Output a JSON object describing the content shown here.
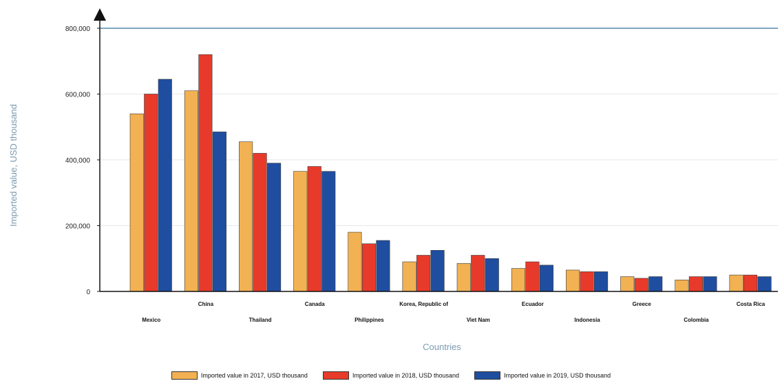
{
  "chart_data": {
    "type": "bar",
    "xlabel": "Countries",
    "ylabel": "Imported value, USD thousand",
    "ylim": [
      0,
      800000
    ],
    "yticks": [
      0,
      200000,
      400000,
      600000,
      800000
    ],
    "ytick_labels": [
      "0",
      "200,000",
      "400,000",
      "600,000",
      "800,000"
    ],
    "grid": "horizontal",
    "legend_position": "bottom",
    "categories": [
      "Mexico",
      "China",
      "Thailand",
      "Canada",
      "Philippines",
      "Korea, Republic of",
      "Viet Nam",
      "Ecuador",
      "Indonesia",
      "Greece",
      "Colombia",
      "Costa Rica"
    ],
    "series": [
      {
        "name": "Imported value in 2017, USD thousand",
        "color": "#f2b152",
        "values": [
          540000,
          610000,
          455000,
          365000,
          180000,
          90000,
          85000,
          70000,
          65000,
          45000,
          35000,
          50000
        ]
      },
      {
        "name": "Imported value in 2018, USD thousand",
        "color": "#e83a2a",
        "values": [
          600000,
          720000,
          420000,
          380000,
          145000,
          110000,
          110000,
          90000,
          60000,
          40000,
          45000,
          50000
        ]
      },
      {
        "name": "Imported value in 2019, USD thousand",
        "color": "#1f4ea0",
        "values": [
          645000,
          485000,
          390000,
          365000,
          155000,
          125000,
          100000,
          80000,
          60000,
          45000,
          45000,
          45000
        ]
      }
    ]
  }
}
